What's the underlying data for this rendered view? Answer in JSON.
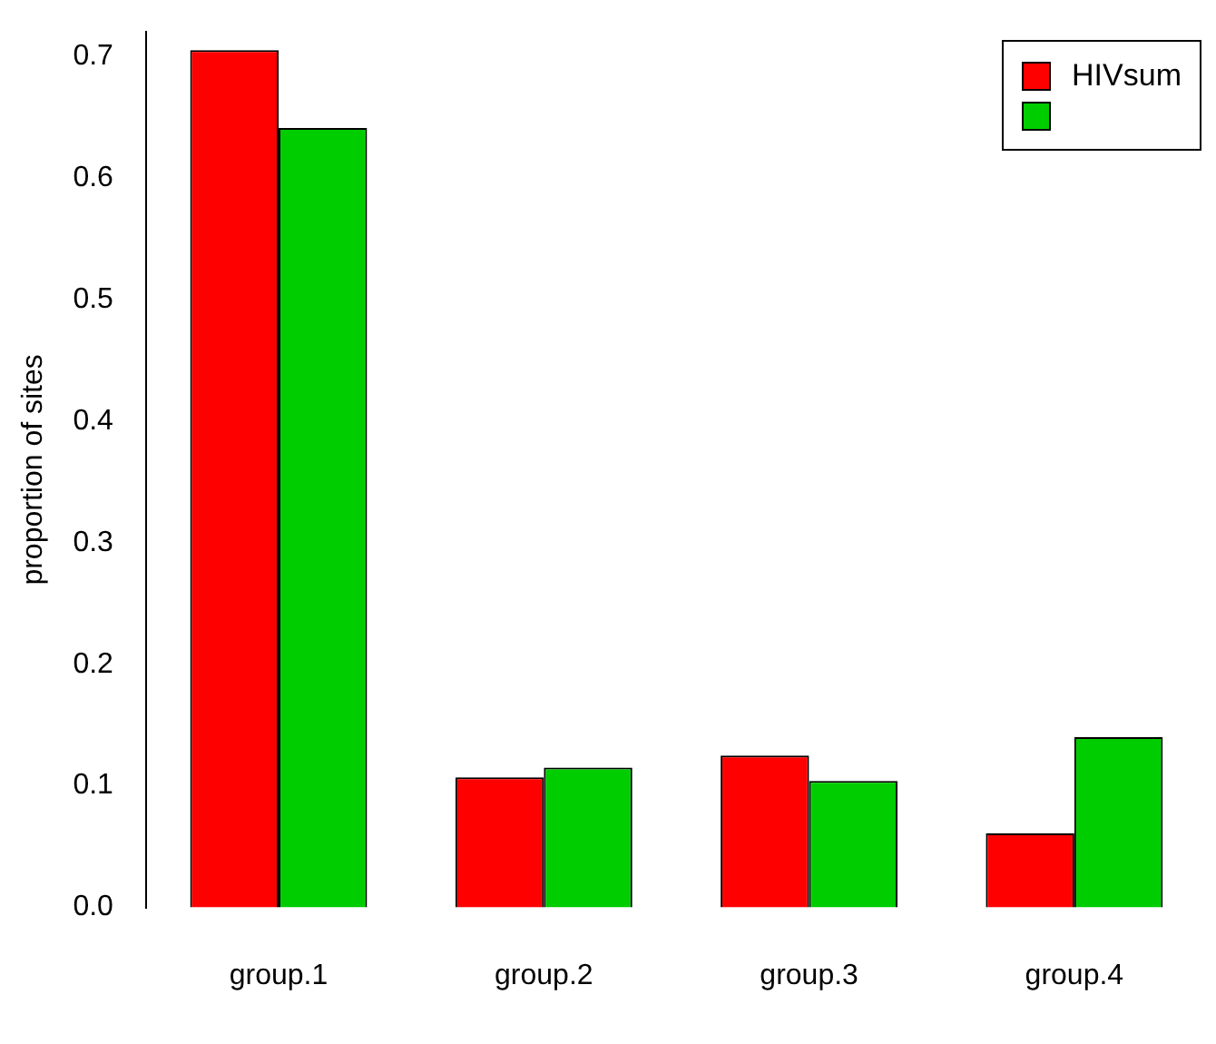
{
  "chart_data": {
    "type": "bar",
    "ylabel": "proportion of sites",
    "categories": [
      "group.1",
      "group.2",
      "group.3",
      "group.4"
    ],
    "series": [
      {
        "name": "HIVsum",
        "color": "#ff0000",
        "values": [
          0.705,
          0.107,
          0.125,
          0.061
        ]
      },
      {
        "color": "#00cd00",
        "values": [
          0.641,
          0.115,
          0.104,
          0.14
        ]
      }
    ],
    "ylim": [
      0,
      0.72
    ],
    "yticks": [
      {
        "value": 0,
        "label": "0.0"
      },
      0.1,
      0.2,
      0.3,
      0.4,
      0.5,
      0.6,
      0.7
    ],
    "grid": false,
    "legend": "top right"
  }
}
